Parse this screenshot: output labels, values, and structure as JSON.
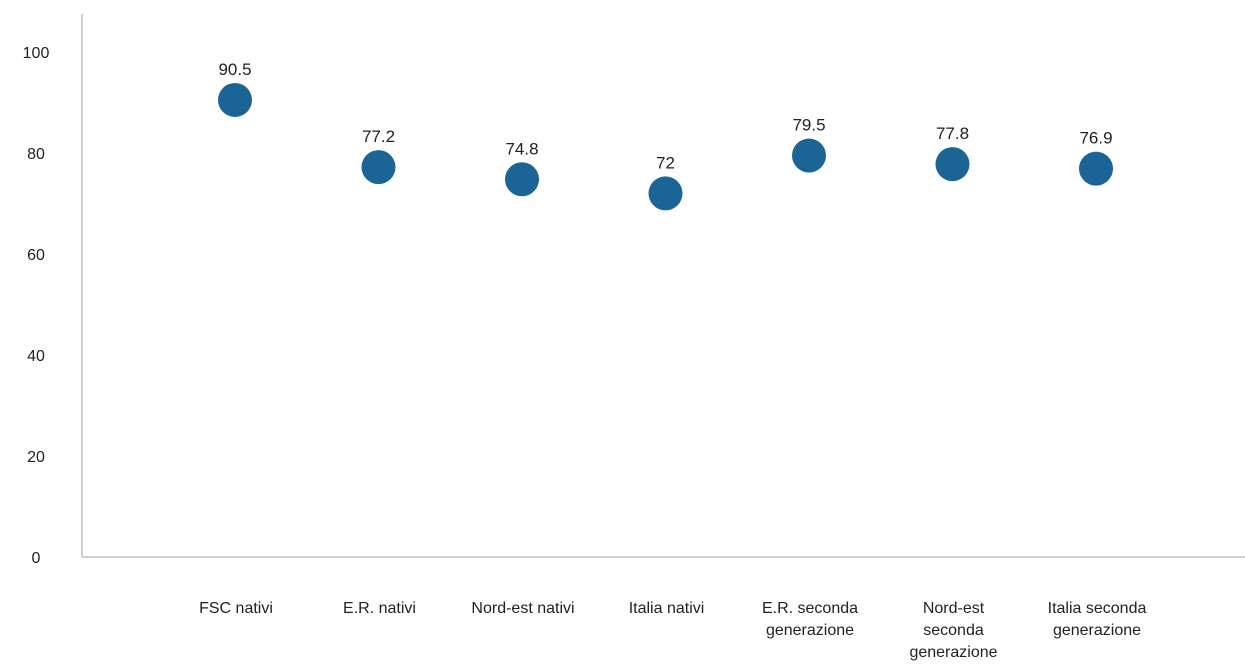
{
  "chart_data": {
    "type": "scatter",
    "categories": [
      "FSC nativi",
      "E.R. nativi",
      "Nord-est nativi",
      "Italia nativi",
      "E.R. seconda generazione",
      "Nord-est seconda generazione",
      "Italia seconda generazione"
    ],
    "category_lines": [
      [
        "FSC nativi"
      ],
      [
        "E.R. nativi"
      ],
      [
        "Nord-est nativi"
      ],
      [
        "Italia nativi"
      ],
      [
        "E.R. seconda",
        "generazione"
      ],
      [
        "Nord-est",
        "seconda",
        "generazione"
      ],
      [
        "Italia seconda",
        "generazione"
      ]
    ],
    "values": [
      90.5,
      77.2,
      74.8,
      72,
      79.5,
      77.8,
      76.9
    ],
    "value_labels": [
      "90.5",
      "77.2",
      "74.8",
      "72",
      "79.5",
      "77.8",
      "76.9"
    ],
    "yticks": [
      0,
      20,
      40,
      60,
      80,
      100
    ],
    "ylim": [
      0,
      100
    ],
    "grid": false,
    "marker_color": "#1a6596",
    "title": "",
    "xlabel": "",
    "ylabel": ""
  }
}
